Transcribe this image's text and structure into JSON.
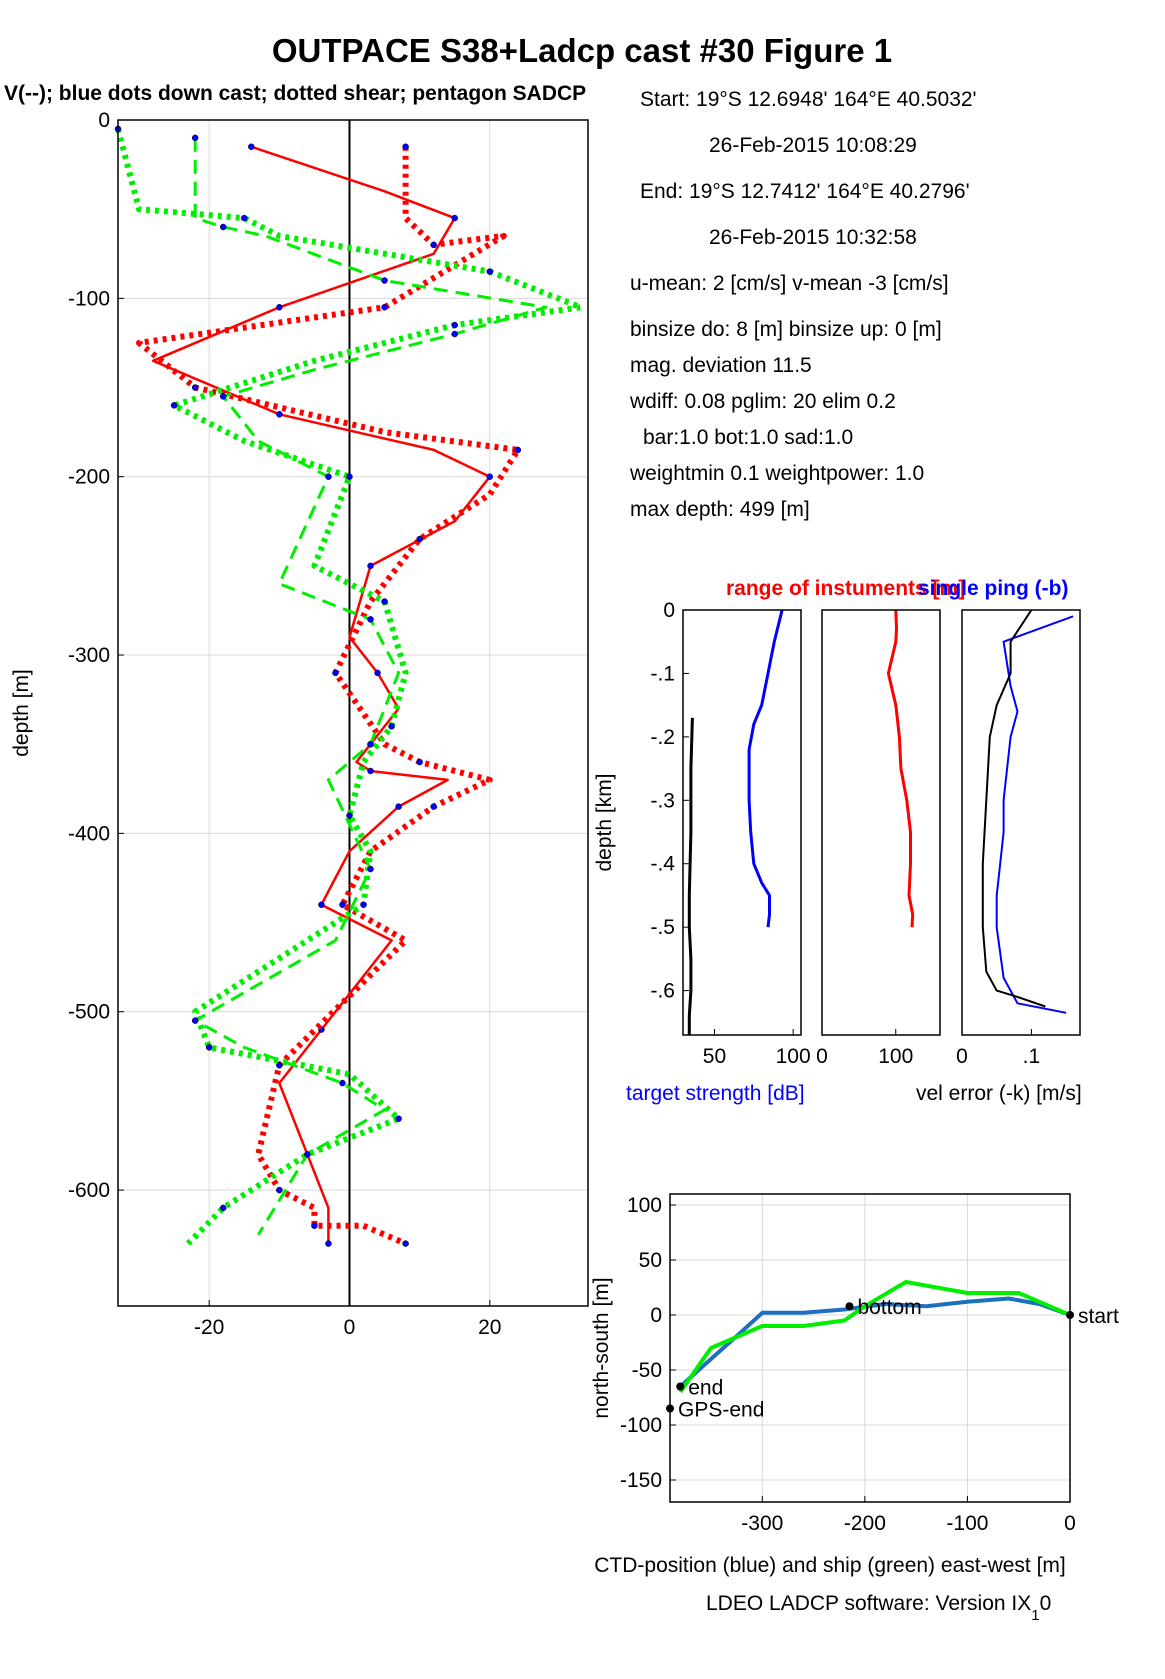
{
  "figure": {
    "title": "OUTPACE S38+Ladcp cast #30  Figure 1",
    "subtitle": "V(--); blue dots down cast; dotted shear; pentagon SADCP",
    "footer": "LDEO LADCP software: Version IX",
    "footer_sub": "1",
    "footer_tail": "0"
  },
  "info": {
    "lines": [
      "Start:  19°S 12.6948'      164°E 40.5032'",
      "26-Feb-2015 10:08:29",
      "End:   19°S 12.7412'      164°E 40.2796'",
      "26-Feb-2015 10:32:58",
      "u-mean:   2 [cm/s]    v-mean  -3 [cm/s]",
      "binsize do: 8 [m]  binsize up:  0 [m]",
      "mag. deviation 11.5",
      "wdiff: 0.08  pglim: 20  elim 0.2",
      "bar:1.0 bot:1.0 sad:1.0",
      "weightmin 0.1  weightpower: 1.0",
      "max depth: 499 [m]"
    ]
  },
  "colors": {
    "red": "#ff0000",
    "green": "#00ee00",
    "blue": "#0000ff",
    "ctd_blue": "#1f6fbf",
    "black": "#000000",
    "grid": "#d9d9d9"
  },
  "chart_data": [
    {
      "id": "velocity_profile",
      "type": "line",
      "ylabel": "depth [m]",
      "xlim": [
        -33,
        34
      ],
      "ylim": [
        -665,
        0
      ],
      "xticks": [
        -20,
        0,
        20
      ],
      "yticks": [
        0,
        -100,
        -200,
        -300,
        -400,
        -500,
        -600
      ],
      "grid": true,
      "series": [
        {
          "color": "red",
          "style": "solid",
          "x": [
            -14,
            5,
            15,
            12,
            -10,
            -28,
            -10,
            12,
            20,
            15,
            3,
            0,
            4,
            7,
            3,
            1,
            3,
            14,
            7,
            0,
            -4,
            6,
            -4,
            -10,
            -6,
            -3,
            -3
          ],
          "y": [
            -15,
            -40,
            -55,
            -75,
            -105,
            -135,
            -165,
            -185,
            -200,
            -225,
            -250,
            -290,
            -310,
            -330,
            -350,
            -360,
            -365,
            -370,
            -385,
            -410,
            -440,
            -460,
            -510,
            -540,
            -580,
            -610,
            -630
          ]
        },
        {
          "color": "red",
          "style": "dotted",
          "x": [
            8,
            8,
            12,
            22,
            5,
            -30,
            -22,
            5,
            24,
            20,
            10,
            3,
            -2,
            5,
            10,
            20,
            12,
            3,
            -1,
            8,
            -10,
            -13,
            -10,
            -5,
            -5,
            2,
            8
          ],
          "y": [
            -15,
            -55,
            -70,
            -65,
            -105,
            -125,
            -150,
            -175,
            -185,
            -210,
            -235,
            -270,
            -310,
            -350,
            -360,
            -370,
            -385,
            -410,
            -440,
            -460,
            -530,
            -580,
            -600,
            -610,
            -620,
            -620,
            -630
          ]
        },
        {
          "color": "green",
          "style": "dotted",
          "x": [
            -33,
            -30,
            -15,
            -10,
            20,
            33,
            15,
            -5,
            -25,
            -15,
            0,
            -5,
            5,
            8,
            6,
            2,
            0,
            3,
            2,
            -22,
            -20,
            0,
            7,
            -6,
            -18,
            -23
          ],
          "y": [
            -5,
            -50,
            -55,
            -65,
            -85,
            -105,
            -115,
            -135,
            -160,
            -180,
            -200,
            -250,
            -270,
            -310,
            -340,
            -360,
            -390,
            -410,
            -440,
            -500,
            -520,
            -535,
            -560,
            -580,
            -610,
            -630
          ]
        },
        {
          "color": "green",
          "style": "dashed",
          "x": [
            -22,
            -22,
            -18,
            -12,
            5,
            28,
            15,
            -5,
            -18,
            -13,
            -3,
            -10,
            3,
            7,
            3,
            -3,
            3,
            -2,
            -22,
            -15,
            -1,
            5,
            -6,
            -13
          ],
          "y": [
            -10,
            -55,
            -60,
            -65,
            -90,
            -105,
            -120,
            -140,
            -155,
            -180,
            -200,
            -260,
            -280,
            -310,
            -350,
            -370,
            -420,
            -460,
            -505,
            -520,
            -540,
            -555,
            -580,
            -625
          ]
        }
      ]
    },
    {
      "id": "target_strength",
      "type": "line",
      "xlim": [
        30,
        105
      ],
      "ylim": [
        -0.67,
        0
      ],
      "xticks": [
        50,
        100
      ],
      "yticks": [
        0,
        -0.1,
        -0.2,
        -0.3,
        -0.4,
        -0.5,
        -0.6
      ],
      "ylabel": "depth [km]",
      "xlabel": "target strength [dB]",
      "series": [
        {
          "color": "blue",
          "x": [
            93,
            88,
            84,
            80,
            75,
            72,
            72,
            73,
            75,
            80,
            85,
            85,
            84
          ],
          "y": [
            0,
            -0.05,
            -0.1,
            -0.15,
            -0.18,
            -0.22,
            -0.3,
            -0.35,
            -0.4,
            -0.43,
            -0.45,
            -0.48,
            -0.5
          ]
        },
        {
          "color": "black",
          "x": [
            36,
            35,
            35,
            34,
            34,
            35,
            35,
            34,
            34
          ],
          "y": [
            -0.17,
            -0.25,
            -0.35,
            -0.45,
            -0.5,
            -0.55,
            -0.6,
            -0.64,
            -0.67
          ]
        }
      ]
    },
    {
      "id": "range",
      "type": "line",
      "xlim": [
        0,
        160
      ],
      "ylim": [
        -0.67,
        0
      ],
      "xticks": [
        0,
        100
      ],
      "series": [
        {
          "color": "red",
          "x": [
            100,
            101,
            100,
            90,
            100,
            105,
            107,
            115,
            120,
            120,
            118,
            123,
            122
          ],
          "y": [
            0,
            -0.03,
            -0.05,
            -0.1,
            -0.15,
            -0.2,
            -0.25,
            -0.3,
            -0.35,
            -0.4,
            -0.45,
            -0.48,
            -0.5
          ]
        }
      ]
    },
    {
      "id": "vel_error",
      "type": "line",
      "xlim": [
        0,
        0.17
      ],
      "ylim": [
        -0.67,
        0
      ],
      "xticks": [
        0,
        0.1
      ],
      "series": [
        {
          "color": "blue",
          "x": [
            0.16,
            0.06,
            0.07,
            0.08,
            0.07,
            0.06,
            0.06,
            0.055,
            0.05,
            0.05,
            0.06,
            0.08,
            0.15
          ],
          "y": [
            -0.01,
            -0.05,
            -0.12,
            -0.16,
            -0.2,
            -0.3,
            -0.35,
            -0.4,
            -0.45,
            -0.5,
            -0.58,
            -0.62,
            -0.635
          ]
        },
        {
          "color": "black",
          "x": [
            0.1,
            0.07,
            0.07,
            0.05,
            0.04,
            0.035,
            0.03,
            0.03,
            0.035,
            0.05,
            0.08,
            0.12
          ],
          "y": [
            0,
            -0.05,
            -0.1,
            -0.15,
            -0.2,
            -0.3,
            -0.4,
            -0.5,
            -0.57,
            -0.6,
            -0.61,
            -0.625
          ]
        }
      ]
    },
    {
      "id": "ctd_track",
      "type": "line",
      "xlabel": "CTD-position (blue) and ship (green) east-west [m]",
      "ylabel": "north-south [m]",
      "xlim": [
        -390,
        0
      ],
      "ylim": [
        -170,
        110
      ],
      "xticks": [
        -300,
        -200,
        -100
      ],
      "xticks_extra": [
        0
      ],
      "yticks": [
        100,
        50,
        0,
        -50,
        -100,
        -150
      ],
      "grid": true,
      "series": [
        {
          "color": "ctd_blue",
          "x": [
            0,
            -30,
            -60,
            -100,
            -140,
            -180,
            -220,
            -260,
            -300,
            -320,
            -350,
            -380
          ],
          "y": [
            0,
            10,
            15,
            12,
            8,
            10,
            5,
            2,
            2,
            -15,
            -40,
            -65
          ]
        },
        {
          "color": "green",
          "x": [
            0,
            -20,
            -50,
            -100,
            -160,
            -200,
            -220,
            -260,
            -300,
            -350,
            -380
          ],
          "y": [
            0,
            8,
            20,
            20,
            30,
            8,
            -5,
            -10,
            -10,
            -30,
            -70
          ]
        }
      ],
      "labels": [
        {
          "text": "start",
          "x": 0,
          "y": 0
        },
        {
          "text": "bottom",
          "x": -215,
          "y": 8
        },
        {
          "text": "end",
          "x": -380,
          "y": -65
        },
        {
          "text": "GPS-end",
          "x": -390,
          "y": -85
        }
      ]
    }
  ],
  "panel_titles": {
    "range_title": "range of instuments [m]",
    "ping_title": "single ping (-b)",
    "vel_error_label": "vel error (-k) [m/s]"
  }
}
